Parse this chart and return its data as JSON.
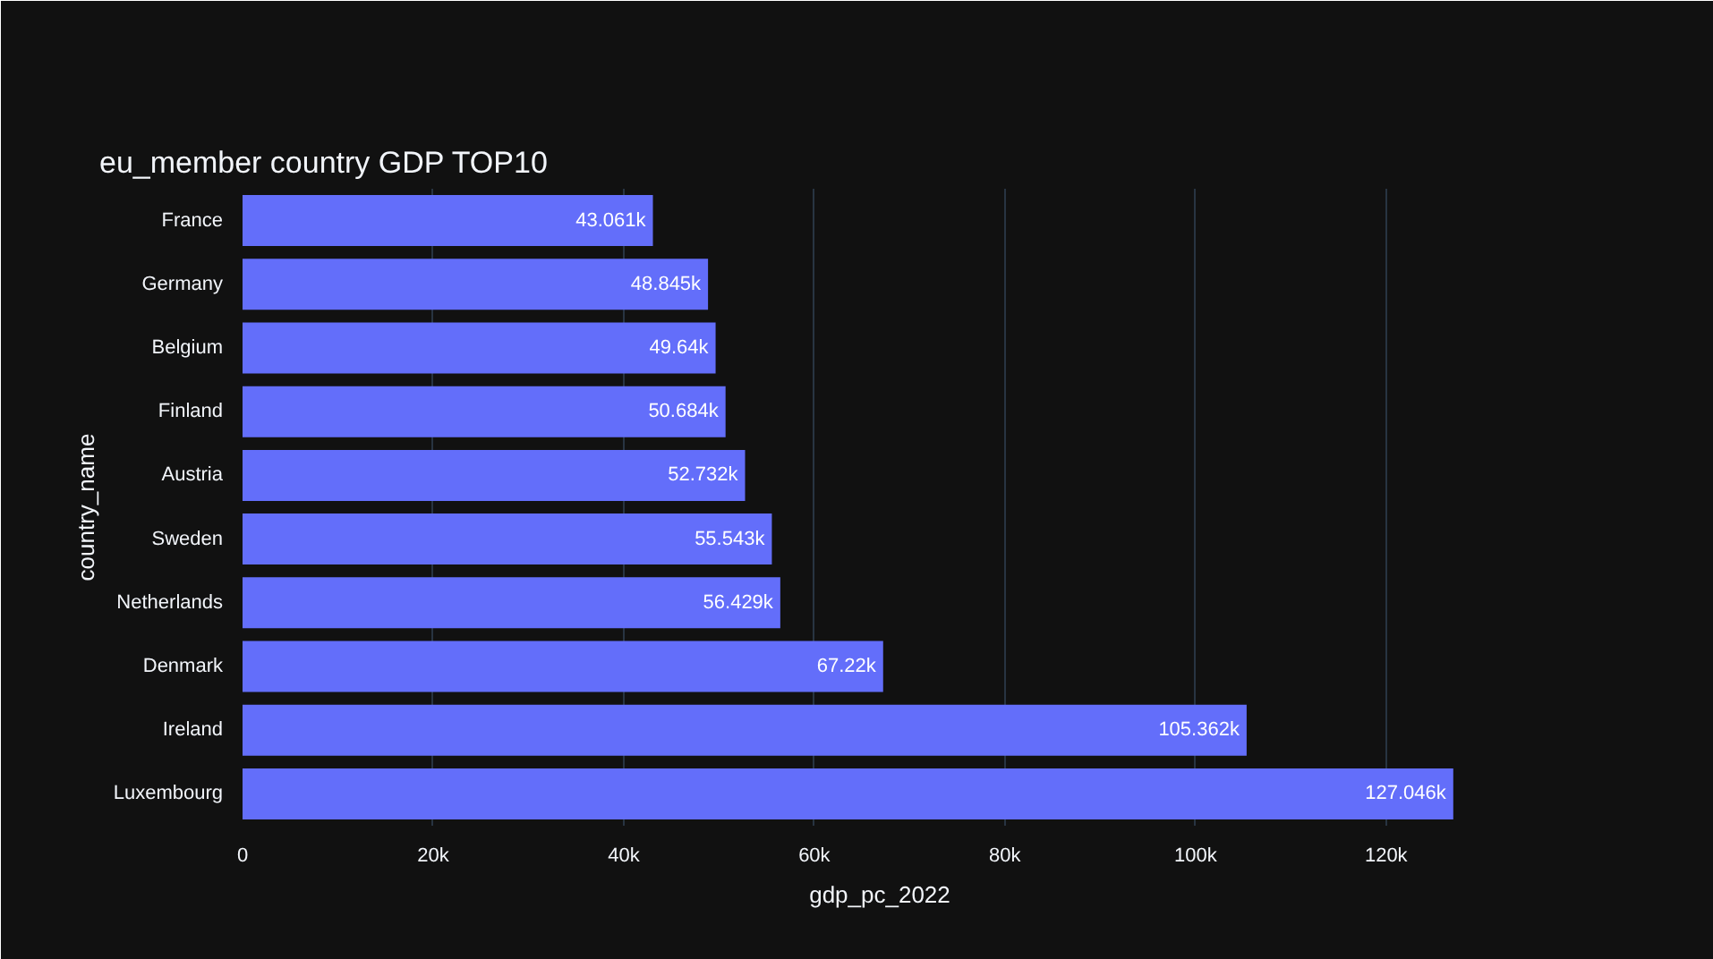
{
  "chart_data": {
    "type": "bar",
    "orientation": "horizontal",
    "title": "eu_member country GDP TOP10",
    "xlabel": "gdp_pc_2022",
    "ylabel": "country_name",
    "categories": [
      "France",
      "Germany",
      "Belgium",
      "Finland",
      "Austria",
      "Sweden",
      "Netherlands",
      "Denmark",
      "Ireland",
      "Luxembourg"
    ],
    "values": [
      43061,
      48845,
      49640,
      50684,
      52732,
      55543,
      56429,
      67220,
      105362,
      127046
    ],
    "value_labels": [
      "43.061k",
      "48.845k",
      "49.64k",
      "50.684k",
      "52.732k",
      "55.543k",
      "56.429k",
      "67.22k",
      "105.362k",
      "127.046k"
    ],
    "color": "#636efa",
    "xlim": [
      0,
      133733
    ],
    "xticks": [
      0,
      {
        "value": 20000,
        "label": "20k"
      },
      {
        "value": 40000,
        "label": "40k"
      },
      {
        "value": 60000,
        "label": "60k"
      },
      {
        "value": 80000,
        "label": "80k"
      },
      {
        "value": 100000,
        "label": "100k"
      },
      {
        "value": 120000,
        "label": "120k"
      }
    ],
    "grid": "x"
  }
}
